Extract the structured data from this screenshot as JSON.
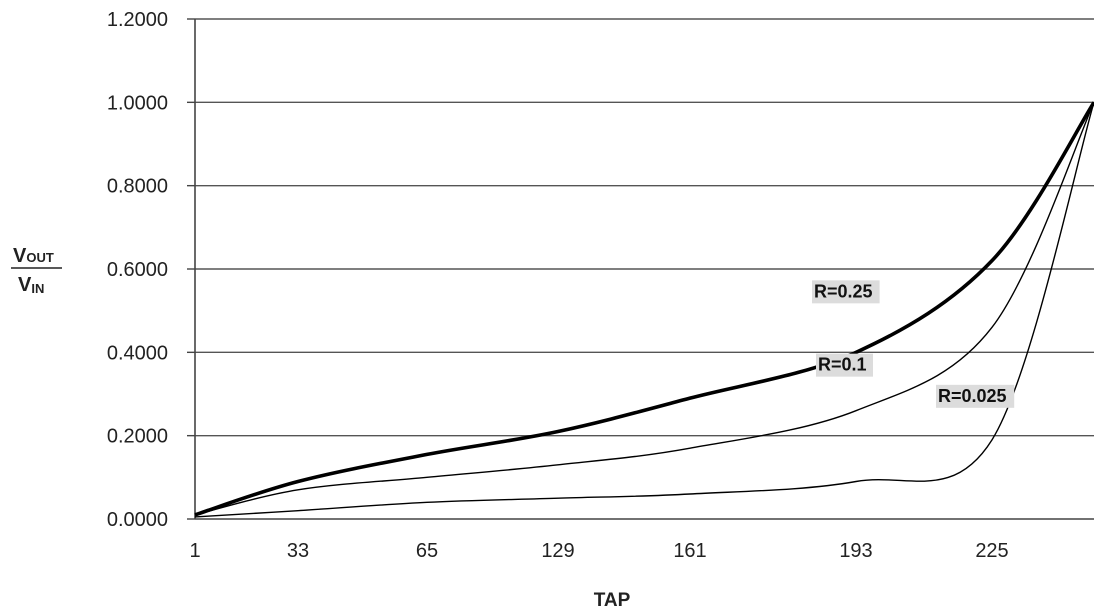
{
  "chart_data": {
    "type": "line",
    "title": "",
    "xlabel": "TAP",
    "ylabel": {
      "numerator_main": "V",
      "numerator_sub": "OUT",
      "denominator_main": "V",
      "denominator_sub": "IN"
    },
    "x_ticks": [
      "1",
      "33",
      "65",
      "129",
      "161",
      "193",
      "225"
    ],
    "y_ticks": [
      "0.0000",
      "0.2000",
      "0.4000",
      "0.6000",
      "0.8000",
      "1.0000",
      "1.2000"
    ],
    "ylim": [
      0,
      1.2
    ],
    "grid": {
      "horizontal": true,
      "vertical": false
    },
    "series": [
      {
        "name": "R=0.25",
        "line_weight": "bold",
        "label_tap": "193",
        "points": [
          [
            "1",
            0.01
          ],
          [
            "33",
            0.09
          ],
          [
            "65",
            0.155
          ],
          [
            "129",
            0.21
          ],
          [
            "161",
            0.29
          ],
          [
            "193",
            0.4
          ],
          [
            "225",
            0.62
          ],
          [
            "end",
            1.0
          ]
        ]
      },
      {
        "name": "R=0.1",
        "line_weight": "thin",
        "label_tap": "193",
        "points": [
          [
            "1",
            0.01
          ],
          [
            "33",
            0.07
          ],
          [
            "65",
            0.1
          ],
          [
            "129",
            0.13
          ],
          [
            "161",
            0.17
          ],
          [
            "193",
            0.26
          ],
          [
            "225",
            0.46
          ],
          [
            "end",
            1.0
          ]
        ]
      },
      {
        "name": "R=0.025",
        "line_weight": "thin",
        "label_tap": "225",
        "points": [
          [
            "1",
            0.005
          ],
          [
            "33",
            0.02
          ],
          [
            "65",
            0.04
          ],
          [
            "129",
            0.05
          ],
          [
            "161",
            0.06
          ],
          [
            "193",
            0.09
          ],
          [
            "225",
            0.19
          ],
          [
            "end",
            1.0
          ]
        ]
      }
    ],
    "colors": {
      "line": "#000000",
      "grid": "#555555",
      "axis": "#444444",
      "label_background": "#dcdcdc"
    }
  }
}
